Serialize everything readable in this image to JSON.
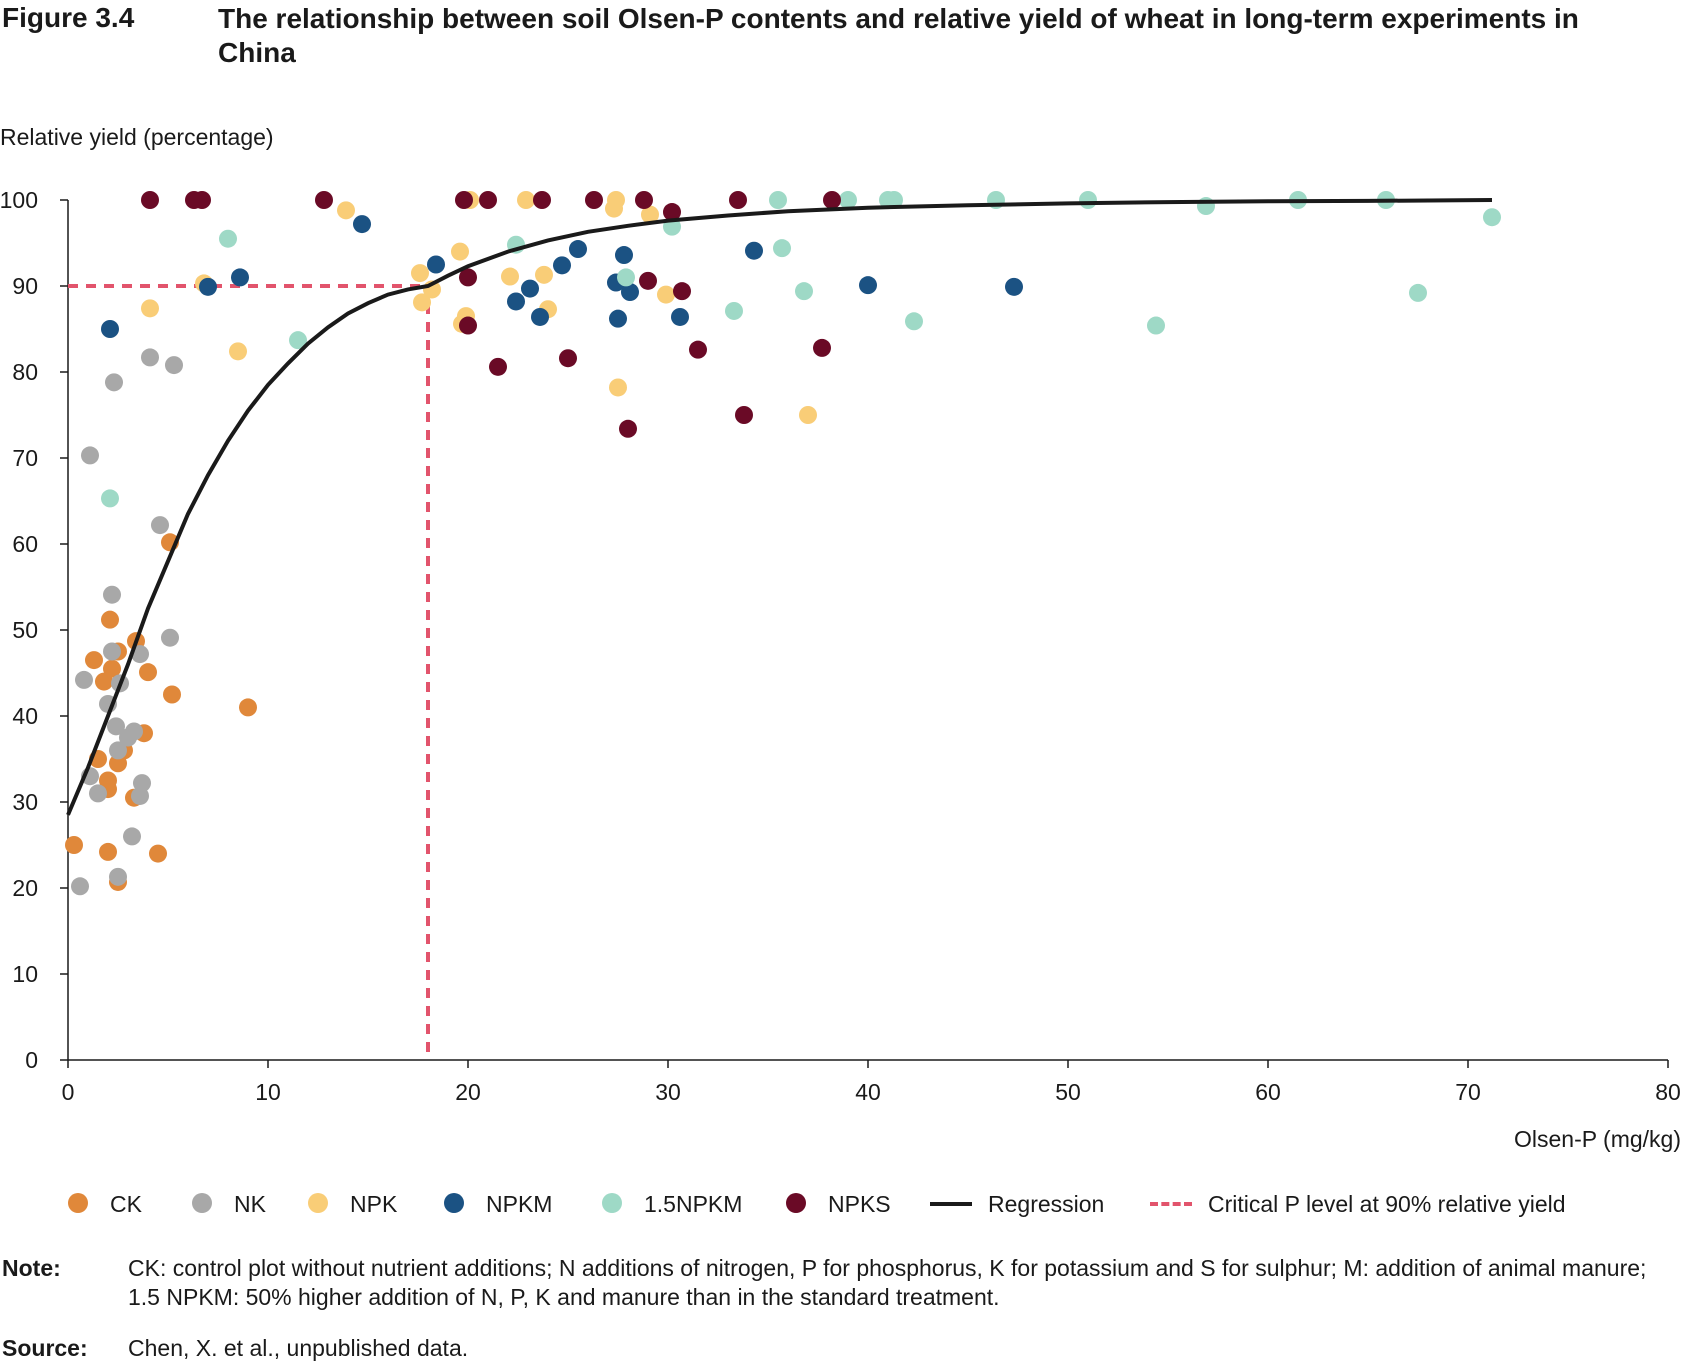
{
  "figure": {
    "number": "Figure 3.4",
    "title": "The relationship between soil Olsen-P contents and relative yield of wheat in long-term experiments in China"
  },
  "note": {
    "label": "Note:",
    "text": "CK: control plot without nutrient additions; N additions of nitrogen, P for phosphorus, K for potassium and S for sulphur; M: addition of animal manure; 1.5 NPKM: 50% higher addition of N, P, K and manure than in the standard treatment."
  },
  "source": {
    "label": "Source:",
    "text": "Chen, X. et al., unpublished data."
  },
  "legend": [
    {
      "label": "CK",
      "color": "#e0883a",
      "kind": "dot"
    },
    {
      "label": "NK",
      "color": "#a8a8a8",
      "kind": "dot"
    },
    {
      "label": "NPK",
      "color": "#f9cd77",
      "kind": "dot"
    },
    {
      "label": "NPKM",
      "color": "#1b5283",
      "kind": "dot"
    },
    {
      "label": "1.5NPKM",
      "color": "#9ed9c6",
      "kind": "dot"
    },
    {
      "label": "NPKS",
      "color": "#6a0a26",
      "kind": "dot"
    },
    {
      "label": "Regression",
      "color": "#1a1a1a",
      "kind": "line"
    },
    {
      "label": "Critical P level at 90% relative yield",
      "color": "#e2546c",
      "kind": "dashed"
    }
  ],
  "chart_data": {
    "type": "scatter",
    "ylabel": "Relative yield (percentage)",
    "xlabel": "Olsen-P (mg/kg)",
    "xlim": [
      0,
      80
    ],
    "ylim": [
      0,
      100
    ],
    "xticks": [
      0,
      10,
      20,
      30,
      40,
      50,
      60,
      70,
      80
    ],
    "yticks": [
      0,
      10,
      20,
      30,
      40,
      50,
      60,
      70,
      80,
      90,
      100
    ],
    "grid": false,
    "legend_position": "bottom",
    "critical_level": {
      "x": 18,
      "y": 90
    },
    "regression": [
      [
        0,
        28.5
      ],
      [
        1,
        34
      ],
      [
        2,
        40
      ],
      [
        3,
        46
      ],
      [
        4,
        52.5
      ],
      [
        5,
        58
      ],
      [
        6,
        63.5
      ],
      [
        7,
        68
      ],
      [
        8,
        72
      ],
      [
        9,
        75.5
      ],
      [
        10,
        78.5
      ],
      [
        11,
        81
      ],
      [
        12,
        83.3
      ],
      [
        13,
        85.2
      ],
      [
        14,
        86.8
      ],
      [
        15,
        88
      ],
      [
        16,
        89
      ],
      [
        17,
        89.6
      ],
      [
        18,
        90
      ],
      [
        19,
        91.2
      ],
      [
        20,
        92.3
      ],
      [
        22,
        94
      ],
      [
        24,
        95.3
      ],
      [
        26,
        96.3
      ],
      [
        28,
        97
      ],
      [
        30,
        97.6
      ],
      [
        33,
        98.2
      ],
      [
        36,
        98.7
      ],
      [
        40,
        99.1
      ],
      [
        45,
        99.4
      ],
      [
        50,
        99.6
      ],
      [
        55,
        99.75
      ],
      [
        60,
        99.85
      ],
      [
        65,
        99.9
      ],
      [
        71.2,
        100
      ]
    ],
    "series": [
      {
        "name": "CK",
        "color": "#e0883a",
        "points": [
          [
            0.3,
            25
          ],
          [
            2,
            24.2
          ],
          [
            2.5,
            20.7
          ],
          [
            4.5,
            24
          ],
          [
            1.5,
            35
          ],
          [
            2,
            32.5
          ],
          [
            2,
            31.5
          ],
          [
            2.5,
            34.5
          ],
          [
            2.8,
            36
          ],
          [
            3.3,
            30.5
          ],
          [
            3.8,
            38
          ],
          [
            1.3,
            46.5
          ],
          [
            1.8,
            44
          ],
          [
            2.1,
            51.2
          ],
          [
            2.2,
            45.5
          ],
          [
            2.5,
            47.5
          ],
          [
            3.4,
            48.7
          ],
          [
            4,
            45.1
          ],
          [
            5.2,
            42.5
          ],
          [
            9,
            41
          ],
          [
            5.1,
            60.2
          ]
        ]
      },
      {
        "name": "NK",
        "color": "#a8a8a8",
        "points": [
          [
            0.6,
            20.2
          ],
          [
            2.5,
            21.3
          ],
          [
            3.2,
            26
          ],
          [
            1.1,
            33
          ],
          [
            1.5,
            31
          ],
          [
            2.4,
            38.8
          ],
          [
            2.5,
            36
          ],
          [
            3,
            37.5
          ],
          [
            3.3,
            38.2
          ],
          [
            3.6,
            30.7
          ],
          [
            3.7,
            32.2
          ],
          [
            0.8,
            44.2
          ],
          [
            2,
            41.4
          ],
          [
            2.6,
            43.8
          ],
          [
            2.2,
            47.5
          ],
          [
            3.6,
            47.2
          ],
          [
            5.1,
            49.1
          ],
          [
            2.2,
            54.1
          ],
          [
            4.6,
            62.2
          ],
          [
            1.1,
            70.3
          ],
          [
            2.3,
            78.8
          ],
          [
            4.1,
            81.7
          ],
          [
            5.3,
            80.8
          ]
        ]
      },
      {
        "name": "NPK",
        "color": "#f9cd77",
        "points": [
          [
            4.1,
            87.4
          ],
          [
            6.8,
            90.3
          ],
          [
            8.5,
            82.4
          ],
          [
            13.9,
            98.8
          ],
          [
            17.6,
            91.5
          ],
          [
            17.7,
            88.1
          ],
          [
            18.2,
            89.6
          ],
          [
            19.6,
            94
          ],
          [
            19.7,
            85.6
          ],
          [
            19.9,
            86.5
          ],
          [
            20.1,
            100
          ],
          [
            22.1,
            91.1
          ],
          [
            22.9,
            100
          ],
          [
            23.8,
            91.3
          ],
          [
            24,
            87.3
          ],
          [
            27.3,
            99
          ],
          [
            27.4,
            100
          ],
          [
            27.5,
            78.2
          ],
          [
            29.1,
            98.3
          ],
          [
            29.9,
            89
          ],
          [
            37,
            75
          ]
        ]
      },
      {
        "name": "NPKM",
        "color": "#1b5283",
        "points": [
          [
            2.1,
            85
          ],
          [
            7,
            89.9
          ],
          [
            8.6,
            91
          ],
          [
            14.7,
            97.2
          ],
          [
            18.4,
            92.5
          ],
          [
            22.4,
            88.2
          ],
          [
            23.1,
            89.7
          ],
          [
            23.6,
            86.4
          ],
          [
            24.7,
            92.4
          ],
          [
            25.5,
            94.3
          ],
          [
            27.4,
            90.4
          ],
          [
            27.5,
            86.2
          ],
          [
            27.8,
            93.6
          ],
          [
            28.1,
            89.3
          ],
          [
            30.6,
            86.4
          ],
          [
            34.3,
            94.1
          ],
          [
            40,
            90.1
          ],
          [
            47.3,
            89.9
          ]
        ]
      },
      {
        "name": "1.5NPKM",
        "color": "#9ed9c6",
        "points": [
          [
            2.1,
            65.3
          ],
          [
            8,
            95.5
          ],
          [
            11.5,
            83.7
          ],
          [
            22.4,
            94.8
          ],
          [
            27.9,
            91
          ],
          [
            30.2,
            96.9
          ],
          [
            33.3,
            87.1
          ],
          [
            35.5,
            100
          ],
          [
            35.7,
            94.4
          ],
          [
            36.8,
            89.4
          ],
          [
            39,
            100
          ],
          [
            41,
            100
          ],
          [
            41.3,
            100
          ],
          [
            42.3,
            85.9
          ],
          [
            46.4,
            100
          ],
          [
            51,
            100
          ],
          [
            54.4,
            85.4
          ],
          [
            56.9,
            99.3
          ],
          [
            61.5,
            100
          ],
          [
            65.9,
            100
          ],
          [
            67.5,
            89.2
          ],
          [
            71.2,
            98
          ]
        ]
      },
      {
        "name": "NPKS",
        "color": "#6a0a26",
        "points": [
          [
            4.1,
            100
          ],
          [
            6.3,
            100
          ],
          [
            6.7,
            100
          ],
          [
            12.8,
            100
          ],
          [
            19.8,
            100
          ],
          [
            20,
            91
          ],
          [
            20,
            85.4
          ],
          [
            21,
            100
          ],
          [
            21.5,
            80.6
          ],
          [
            23.7,
            100
          ],
          [
            25,
            81.6
          ],
          [
            26.3,
            100
          ],
          [
            28,
            73.4
          ],
          [
            28.8,
            100
          ],
          [
            29,
            90.6
          ],
          [
            30.2,
            98.6
          ],
          [
            30.7,
            89.4
          ],
          [
            31.5,
            82.6
          ],
          [
            33.5,
            100
          ],
          [
            33.8,
            75
          ],
          [
            37.7,
            82.8
          ],
          [
            38.2,
            100
          ]
        ]
      }
    ]
  }
}
